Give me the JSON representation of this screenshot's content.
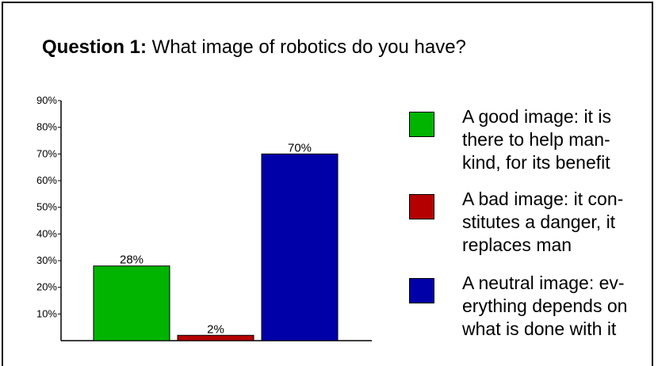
{
  "question": {
    "label": "Question 1:",
    "text": " What image of robotics do you have?"
  },
  "chart_data": {
    "type": "bar",
    "categories": [
      "A good image",
      "A bad image",
      "A neutral image"
    ],
    "values": [
      28,
      2,
      70
    ],
    "data_labels": [
      "28%",
      "2%",
      "70%"
    ],
    "colors": [
      "#00b400",
      "#b40000",
      "#0000a8"
    ],
    "ylim": [
      0,
      90
    ],
    "yticks": [
      "10%",
      "20%",
      "30%",
      "40%",
      "50%",
      "60%",
      "70%",
      "80%",
      "90%"
    ],
    "grid": false,
    "legend_position": "right"
  },
  "legend": [
    {
      "text": "A good image: it is\nthere to help man-\nkind, for its benefit",
      "color": "#00b400"
    },
    {
      "text": "A bad image: it con-\nstitutes a danger, it\nreplaces man",
      "color": "#b40000"
    },
    {
      "text": "A neutral image: ev-\nerything depends on\nwhat is done with it",
      "color": "#0000a8"
    }
  ]
}
